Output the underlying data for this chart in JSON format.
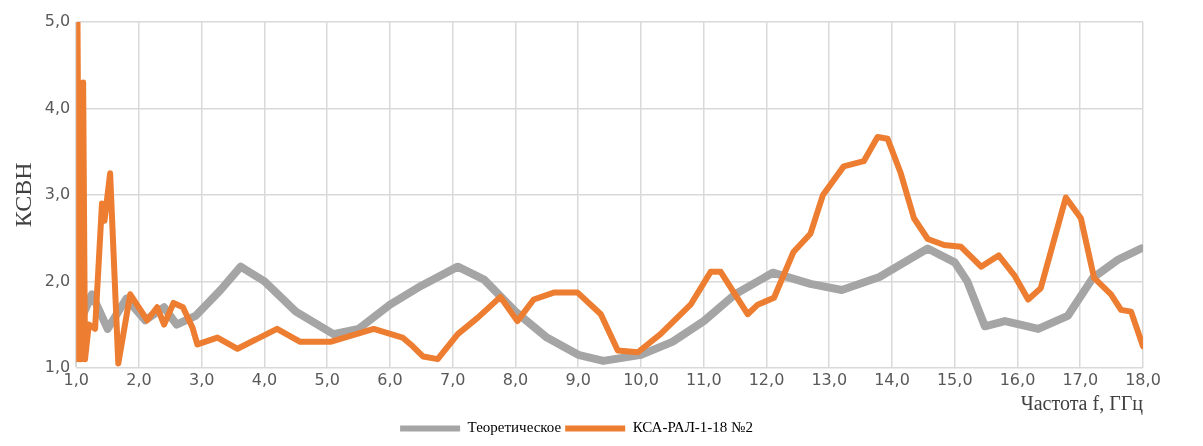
{
  "chart_data": {
    "type": "line",
    "xlabel": "Частота f, ГГц",
    "ylabel": "КСВН",
    "xlim": [
      1.0,
      18.0
    ],
    "xticks": [
      {
        "value": 1,
        "label": "1,0"
      },
      {
        "value": 2,
        "label": "2,0"
      },
      {
        "value": 3,
        "label": "3,0"
      },
      {
        "value": 4,
        "label": "4,0"
      },
      {
        "value": 5,
        "label": "5,0"
      },
      {
        "value": 6,
        "label": "6,0"
      },
      {
        "value": 7,
        "label": "7,0"
      },
      {
        "value": 8,
        "label": "8,0"
      },
      {
        "value": 9,
        "label": "9,0"
      },
      {
        "value": 10,
        "label": "10,0"
      },
      {
        "value": 11,
        "label": "11,0"
      },
      {
        "value": 12,
        "label": "12,0"
      },
      {
        "value": 13,
        "label": "13,0"
      },
      {
        "value": 14,
        "label": "14,0"
      },
      {
        "value": 15,
        "label": "15,0"
      },
      {
        "value": 16,
        "label": "16,0"
      },
      {
        "value": 17,
        "label": "17,0"
      },
      {
        "value": 18,
        "label": "18,0"
      }
    ],
    "ylim": [
      1.0,
      5.0
    ],
    "yticks": [
      {
        "value": 1,
        "label": "1,0"
      },
      {
        "value": 2,
        "label": "2,0"
      },
      {
        "value": 3,
        "label": "3,0"
      },
      {
        "value": 4,
        "label": "4,0"
      },
      {
        "value": 5,
        "label": "5,0"
      }
    ],
    "grid": true,
    "legend": "bottom",
    "marker": "none",
    "series": [
      {
        "name": "Теоретическое",
        "color": "#a5a5a5",
        "x": [
          1.1,
          1.25,
          1.5,
          1.8,
          2.1,
          2.4,
          2.6,
          2.9,
          3.3,
          3.62,
          4.0,
          4.5,
          5.1,
          5.5,
          6.0,
          6.5,
          7.08,
          7.5,
          8.0,
          8.5,
          9.0,
          9.4,
          10.0,
          10.5,
          11.0,
          11.5,
          12.1,
          12.7,
          13.2,
          13.8,
          14.57,
          15.0,
          15.2,
          15.48,
          15.8,
          16.33,
          16.8,
          17.2,
          17.6,
          17.97
        ],
        "values": [
          1.6,
          1.85,
          1.45,
          1.8,
          1.55,
          1.7,
          1.5,
          1.6,
          1.9,
          2.17,
          2.0,
          1.65,
          1.39,
          1.45,
          1.73,
          1.95,
          2.17,
          2.02,
          1.65,
          1.35,
          1.15,
          1.08,
          1.15,
          1.3,
          1.54,
          1.85,
          2.1,
          1.97,
          1.9,
          2.05,
          2.38,
          2.22,
          2.0,
          1.48,
          1.54,
          1.45,
          1.6,
          2.04,
          2.25,
          2.38
        ]
      },
      {
        "name": "КСА-РАЛ-1-18 №2",
        "color": "#ed7d31",
        "x": [
          1.0,
          1.02,
          1.05,
          1.08,
          1.11,
          1.14,
          1.2,
          1.3,
          1.41,
          1.45,
          1.54,
          1.67,
          1.86,
          2.13,
          2.29,
          2.4,
          2.55,
          2.7,
          2.85,
          2.93,
          3.25,
          3.57,
          4.2,
          4.57,
          5.05,
          5.74,
          6.2,
          6.33,
          6.53,
          6.76,
          7.08,
          7.4,
          7.76,
          8.03,
          8.29,
          8.61,
          8.99,
          9.36,
          9.63,
          9.95,
          10.31,
          10.79,
          11.11,
          11.27,
          11.7,
          11.86,
          12.12,
          12.43,
          12.7,
          12.9,
          13.23,
          13.55,
          13.77,
          13.93,
          14.14,
          14.35,
          14.57,
          14.83,
          15.1,
          15.42,
          15.7,
          15.95,
          16.17,
          16.37,
          16.77,
          17.01,
          17.22,
          17.49,
          17.65,
          17.81,
          18.0
        ],
        "values": [
          1.1,
          5.0,
          1.1,
          1.1,
          4.3,
          1.1,
          1.5,
          1.45,
          2.9,
          2.7,
          3.25,
          1.05,
          1.85,
          1.55,
          1.7,
          1.5,
          1.75,
          1.7,
          1.47,
          1.27,
          1.35,
          1.22,
          1.45,
          1.3,
          1.3,
          1.45,
          1.35,
          1.27,
          1.13,
          1.1,
          1.39,
          1.58,
          1.82,
          1.54,
          1.79,
          1.87,
          1.87,
          1.62,
          1.2,
          1.18,
          1.39,
          1.73,
          2.11,
          2.11,
          1.62,
          1.73,
          1.81,
          2.34,
          2.55,
          3.0,
          3.33,
          3.39,
          3.67,
          3.65,
          3.25,
          2.73,
          2.49,
          2.42,
          2.4,
          2.17,
          2.3,
          2.07,
          1.79,
          1.92,
          2.97,
          2.73,
          2.04,
          1.85,
          1.67,
          1.65,
          1.25
        ]
      }
    ]
  }
}
